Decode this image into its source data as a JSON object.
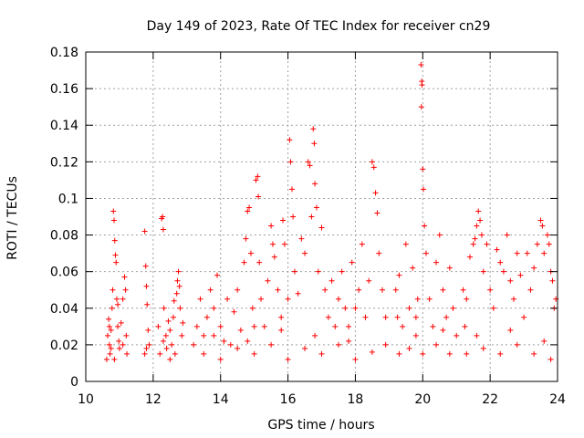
{
  "chart_data": {
    "type": "scatter",
    "title": "Day 149 of 2023, Rate Of TEC Index for receiver cn29",
    "xlabel": "GPS time / hours",
    "ylabel": "ROTI / TECUs",
    "xlim": [
      10,
      24
    ],
    "ylim": [
      0,
      0.18
    ],
    "x_ticks": [
      "10",
      "12",
      "14",
      "16",
      "18",
      "20",
      "22",
      "24"
    ],
    "y_ticks": [
      "0",
      "0.02",
      "0.04",
      "0.06",
      "0.08",
      "0.1",
      "0.12",
      "0.14",
      "0.16",
      "0.18"
    ],
    "grid": true,
    "legend": "none",
    "marker": "plus",
    "series": [
      {
        "color": "#ff0000",
        "points": [
          [
            10.62,
            0.012
          ],
          [
            10.65,
            0.025
          ],
          [
            10.68,
            0.034
          ],
          [
            10.7,
            0.02
          ],
          [
            10.72,
            0.015
          ],
          [
            10.75,
            0.028
          ],
          [
            10.78,
            0.04
          ],
          [
            10.8,
            0.05
          ],
          [
            10.82,
            0.093
          ],
          [
            10.84,
            0.088
          ],
          [
            10.86,
            0.077
          ],
          [
            10.88,
            0.069
          ],
          [
            10.9,
            0.065
          ],
          [
            10.92,
            0.045
          ],
          [
            10.95,
            0.03
          ],
          [
            10.98,
            0.022
          ],
          [
            11.0,
            0.018
          ],
          [
            11.05,
            0.032
          ],
          [
            11.1,
            0.045
          ],
          [
            11.15,
            0.057
          ],
          [
            11.18,
            0.05
          ],
          [
            11.2,
            0.025
          ],
          [
            11.22,
            0.015
          ],
          [
            10.75,
            0.018
          ],
          [
            10.85,
            0.012
          ],
          [
            10.95,
            0.042
          ],
          [
            11.1,
            0.02
          ],
          [
            10.7,
            0.03
          ],
          [
            11.75,
            0.082
          ],
          [
            11.78,
            0.063
          ],
          [
            11.8,
            0.052
          ],
          [
            11.82,
            0.042
          ],
          [
            11.85,
            0.028
          ],
          [
            11.8,
            0.018
          ],
          [
            11.75,
            0.015
          ],
          [
            11.88,
            0.02
          ],
          [
            12.15,
            0.03
          ],
          [
            12.2,
            0.015
          ],
          [
            12.25,
            0.089
          ],
          [
            12.28,
            0.09
          ],
          [
            12.3,
            0.083
          ],
          [
            12.32,
            0.04
          ],
          [
            12.38,
            0.025
          ],
          [
            12.4,
            0.018
          ],
          [
            12.45,
            0.033
          ],
          [
            12.5,
            0.028
          ],
          [
            12.55,
            0.02
          ],
          [
            12.6,
            0.035
          ],
          [
            12.65,
            0.015
          ],
          [
            12.7,
            0.048
          ],
          [
            12.72,
            0.055
          ],
          [
            12.75,
            0.06
          ],
          [
            12.78,
            0.052
          ],
          [
            12.8,
            0.04
          ],
          [
            12.85,
            0.025
          ],
          [
            12.88,
            0.032
          ],
          [
            12.5,
            0.012
          ],
          [
            12.3,
            0.022
          ],
          [
            12.62,
            0.044
          ],
          [
            13.2,
            0.02
          ],
          [
            13.3,
            0.03
          ],
          [
            13.4,
            0.045
          ],
          [
            13.5,
            0.025
          ],
          [
            13.6,
            0.035
          ],
          [
            13.7,
            0.05
          ],
          [
            13.8,
            0.04
          ],
          [
            13.9,
            0.058
          ],
          [
            14.0,
            0.03
          ],
          [
            14.1,
            0.022
          ],
          [
            14.2,
            0.045
          ],
          [
            14.3,
            0.02
          ],
          [
            14.4,
            0.038
          ],
          [
            14.5,
            0.05
          ],
          [
            14.6,
            0.028
          ],
          [
            14.7,
            0.065
          ],
          [
            14.75,
            0.078
          ],
          [
            14.8,
            0.093
          ],
          [
            14.85,
            0.095
          ],
          [
            14.9,
            0.07
          ],
          [
            14.95,
            0.04
          ],
          [
            15.0,
            0.03
          ],
          [
            15.05,
            0.11
          ],
          [
            15.1,
            0.112
          ],
          [
            15.12,
            0.101
          ],
          [
            15.15,
            0.065
          ],
          [
            15.2,
            0.045
          ],
          [
            15.3,
            0.03
          ],
          [
            15.4,
            0.055
          ],
          [
            15.5,
            0.085
          ],
          [
            15.55,
            0.075
          ],
          [
            15.6,
            0.068
          ],
          [
            15.7,
            0.05
          ],
          [
            15.8,
            0.035
          ],
          [
            15.85,
            0.088
          ],
          [
            15.9,
            0.075
          ],
          [
            16.0,
            0.045
          ],
          [
            16.05,
            0.132
          ],
          [
            16.08,
            0.12
          ],
          [
            16.12,
            0.105
          ],
          [
            16.15,
            0.09
          ],
          [
            16.2,
            0.06
          ],
          [
            16.3,
            0.048
          ],
          [
            16.4,
            0.078
          ],
          [
            16.5,
            0.07
          ],
          [
            16.6,
            0.12
          ],
          [
            16.65,
            0.118
          ],
          [
            16.7,
            0.09
          ],
          [
            16.75,
            0.138
          ],
          [
            16.78,
            0.13
          ],
          [
            16.8,
            0.108
          ],
          [
            16.85,
            0.095
          ],
          [
            16.9,
            0.06
          ],
          [
            17.0,
            0.084
          ],
          [
            17.1,
            0.05
          ],
          [
            17.2,
            0.035
          ],
          [
            17.3,
            0.055
          ],
          [
            17.4,
            0.03
          ],
          [
            17.5,
            0.045
          ],
          [
            17.6,
            0.06
          ],
          [
            17.7,
            0.04
          ],
          [
            17.8,
            0.03
          ],
          [
            17.9,
            0.065
          ],
          [
            18.0,
            0.04
          ],
          [
            18.1,
            0.05
          ],
          [
            18.2,
            0.075
          ],
          [
            18.3,
            0.035
          ],
          [
            18.4,
            0.055
          ],
          [
            18.5,
            0.12
          ],
          [
            18.55,
            0.117
          ],
          [
            18.6,
            0.103
          ],
          [
            18.65,
            0.092
          ],
          [
            18.7,
            0.07
          ],
          [
            18.8,
            0.05
          ],
          [
            18.9,
            0.035
          ],
          [
            13.5,
            0.015
          ],
          [
            14.0,
            0.012
          ],
          [
            14.5,
            0.018
          ],
          [
            15.0,
            0.015
          ],
          [
            15.5,
            0.02
          ],
          [
            16.0,
            0.012
          ],
          [
            16.5,
            0.018
          ],
          [
            17.0,
            0.015
          ],
          [
            17.5,
            0.02
          ],
          [
            18.0,
            0.012
          ],
          [
            18.5,
            0.016
          ],
          [
            18.9,
            0.02
          ],
          [
            13.8,
            0.025
          ],
          [
            14.8,
            0.022
          ],
          [
            15.8,
            0.028
          ],
          [
            16.8,
            0.025
          ],
          [
            17.8,
            0.022
          ],
          [
            19.2,
            0.05
          ],
          [
            19.25,
            0.035
          ],
          [
            19.3,
            0.058
          ],
          [
            19.4,
            0.03
          ],
          [
            19.5,
            0.075
          ],
          [
            19.6,
            0.04
          ],
          [
            19.7,
            0.062
          ],
          [
            19.8,
            0.025
          ],
          [
            19.85,
            0.045
          ],
          [
            19.95,
            0.173
          ],
          [
            19.97,
            0.164
          ],
          [
            19.98,
            0.162
          ],
          [
            19.96,
            0.15
          ],
          [
            20.0,
            0.116
          ],
          [
            20.02,
            0.105
          ],
          [
            20.05,
            0.085
          ],
          [
            20.1,
            0.07
          ],
          [
            20.2,
            0.045
          ],
          [
            20.3,
            0.03
          ],
          [
            20.4,
            0.065
          ],
          [
            20.5,
            0.08
          ],
          [
            20.6,
            0.05
          ],
          [
            20.7,
            0.035
          ],
          [
            20.8,
            0.062
          ],
          [
            20.9,
            0.04
          ],
          [
            21.0,
            0.025
          ],
          [
            19.3,
            0.015
          ],
          [
            19.6,
            0.018
          ],
          [
            20.0,
            0.015
          ],
          [
            20.4,
            0.02
          ],
          [
            20.8,
            0.015
          ],
          [
            19.8,
            0.035
          ],
          [
            20.6,
            0.028
          ],
          [
            21.2,
            0.05
          ],
          [
            21.25,
            0.03
          ],
          [
            21.3,
            0.045
          ],
          [
            21.4,
            0.068
          ],
          [
            21.5,
            0.075
          ],
          [
            21.55,
            0.078
          ],
          [
            21.6,
            0.085
          ],
          [
            21.65,
            0.093
          ],
          [
            21.7,
            0.088
          ],
          [
            21.75,
            0.08
          ],
          [
            21.8,
            0.06
          ],
          [
            21.9,
            0.075
          ],
          [
            22.0,
            0.05
          ],
          [
            22.1,
            0.04
          ],
          [
            22.2,
            0.072
          ],
          [
            22.3,
            0.065
          ],
          [
            22.4,
            0.06
          ],
          [
            22.5,
            0.08
          ],
          [
            22.6,
            0.055
          ],
          [
            22.7,
            0.045
          ],
          [
            22.8,
            0.07
          ],
          [
            22.9,
            0.058
          ],
          [
            23.0,
            0.035
          ],
          [
            23.1,
            0.07
          ],
          [
            23.2,
            0.05
          ],
          [
            23.3,
            0.062
          ],
          [
            23.4,
            0.075
          ],
          [
            23.5,
            0.088
          ],
          [
            23.55,
            0.085
          ],
          [
            23.6,
            0.07
          ],
          [
            23.7,
            0.08
          ],
          [
            23.75,
            0.075
          ],
          [
            23.8,
            0.06
          ],
          [
            23.85,
            0.055
          ],
          [
            23.9,
            0.04
          ],
          [
            23.95,
            0.045
          ],
          [
            21.3,
            0.015
          ],
          [
            21.8,
            0.018
          ],
          [
            22.3,
            0.015
          ],
          [
            22.8,
            0.02
          ],
          [
            23.3,
            0.015
          ],
          [
            23.8,
            0.012
          ],
          [
            21.6,
            0.025
          ],
          [
            22.6,
            0.028
          ],
          [
            23.6,
            0.022
          ]
        ]
      }
    ]
  }
}
